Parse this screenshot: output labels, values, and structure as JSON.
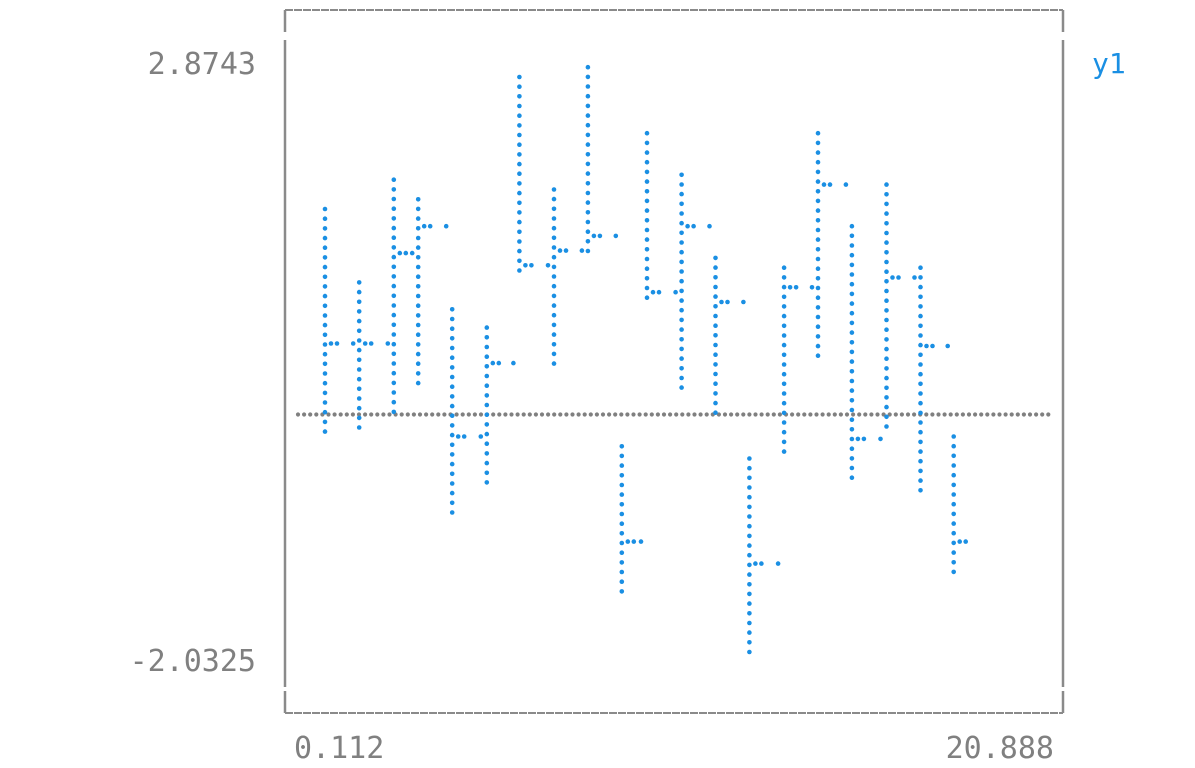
{
  "chart_data": {
    "type": "line",
    "style": "braille-dot terminal plot with per-step vertical error ranges",
    "x_ticks": [
      "0.112",
      "20.888"
    ],
    "y_ticks": [
      "2.8743",
      "-2.0325"
    ],
    "xlim": [
      0.112,
      20.888
    ],
    "ylim": [
      -2.0325,
      2.8743
    ],
    "grid": false,
    "legend_position": "top-right",
    "zero_line": true,
    "series": [
      {
        "name": "y1",
        "color": "#1a8fe3",
        "points": [
          {
            "x": 0.112,
            "low": -0.18,
            "high": 1.68,
            "mid": 0.58
          },
          {
            "x": 1.12,
            "low": -0.12,
            "high": 1.08,
            "mid": 0.58
          },
          {
            "x": 2.14,
            "low": 0.0,
            "high": 1.92,
            "mid": 1.32
          },
          {
            "x": 2.86,
            "low": 0.2,
            "high": 1.76,
            "mid": 1.54
          },
          {
            "x": 3.86,
            "low": -0.86,
            "high": 0.86,
            "mid": -0.18
          },
          {
            "x": 4.88,
            "low": -0.56,
            "high": 0.71,
            "mid": 0.42
          },
          {
            "x": 5.84,
            "low": 1.1,
            "high": 2.76,
            "mid": 1.22
          },
          {
            "x": 6.86,
            "low": 0.35,
            "high": 1.84,
            "mid": 1.34
          },
          {
            "x": 7.86,
            "low": 1.26,
            "high": 2.84,
            "mid": 1.46
          },
          {
            "x": 8.86,
            "low": -1.5,
            "high": -0.26,
            "mid": -1.04
          },
          {
            "x": 9.6,
            "low": 0.92,
            "high": 2.3,
            "mid": 1.0
          },
          {
            "x": 10.62,
            "low": 0.22,
            "high": 1.96,
            "mid": 1.54
          },
          {
            "x": 11.62,
            "low": 0.0,
            "high": 1.28,
            "mid": 0.92
          },
          {
            "x": 12.62,
            "low": -2.0,
            "high": -0.36,
            "mid": -1.22
          },
          {
            "x": 13.64,
            "low": -0.36,
            "high": 1.2,
            "mid": 1.04
          },
          {
            "x": 14.64,
            "low": 0.42,
            "high": 2.3,
            "mid": 1.88
          },
          {
            "x": 15.64,
            "low": -0.56,
            "high": 1.54,
            "mid": -0.2
          },
          {
            "x": 16.66,
            "low": -0.12,
            "high": 1.88,
            "mid": 1.12
          },
          {
            "x": 17.66,
            "low": -0.66,
            "high": 1.2,
            "mid": 0.56
          },
          {
            "x": 18.64,
            "low": -1.3,
            "high": -0.18,
            "mid": -1.04
          }
        ]
      }
    ]
  }
}
